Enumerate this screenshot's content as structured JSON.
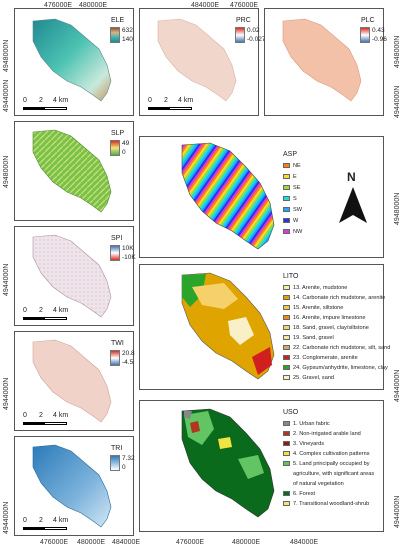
{
  "coords": {
    "easting": [
      "476000E",
      "480000E",
      "484000E"
    ],
    "northing": [
      "4948000N",
      "4944000N"
    ]
  },
  "scale": {
    "zero": "0",
    "mid": "2",
    "end": "4 km"
  },
  "panels": {
    "ele": {
      "title": "ELE",
      "max": "632",
      "min": "140",
      "ramp": [
        "#8b5a2b",
        "#d8b48a",
        "#3fb5a8",
        "#1f8a92"
      ]
    },
    "prc": {
      "title": "PRC",
      "max": "0.02",
      "min": "-0.027",
      "ramp": [
        "#d73027",
        "#ffffff",
        "#4575b4"
      ]
    },
    "plc": {
      "title": "PLC",
      "max": "0.43",
      "min": "-0.96",
      "ramp": [
        "#d73027",
        "#ffffff",
        "#4575b4"
      ]
    },
    "slp": {
      "title": "SLP",
      "max": "49",
      "min": "0",
      "ramp": [
        "#d7301f",
        "#f6e27f",
        "#4daf4a"
      ]
    },
    "spi": {
      "title": "SPI",
      "max": "10K",
      "min": "-10K",
      "ramp": [
        "#4575b4",
        "#ffffff",
        "#d73027"
      ]
    },
    "twi": {
      "title": "TWI",
      "max": "20.8",
      "min": "-4.5",
      "ramp": [
        "#d73027",
        "#ffffff",
        "#4575b4"
      ]
    },
    "tri": {
      "title": "TRI",
      "max": "7.32",
      "min": "0",
      "ramp": [
        "#ffffff",
        "#2b7bba"
      ]
    }
  },
  "asp": {
    "title": "ASP",
    "classes": [
      {
        "label": "NE",
        "color": "#ff7f0e"
      },
      {
        "label": "E",
        "color": "#ffd92f"
      },
      {
        "label": "SE",
        "color": "#9bd93c"
      },
      {
        "label": "S",
        "color": "#17e0e0"
      },
      {
        "label": "SW",
        "color": "#1fa6ff"
      },
      {
        "label": "W",
        "color": "#2a33e6"
      },
      {
        "label": "NW",
        "color": "#d93ad9"
      }
    ],
    "north": "N"
  },
  "lito": {
    "title": "LITO",
    "classes": [
      {
        "label": "13. Arenite, mudstone",
        "color": "#f7f29a"
      },
      {
        "label": "14. Carbonate rich mudstone, arenite",
        "color": "#e0a400"
      },
      {
        "label": "15. Arenite, siltstone",
        "color": "#f4c542"
      },
      {
        "label": "16. Arenite, impure limestone",
        "color": "#f08a1e"
      },
      {
        "label": "18. Sand, gravel, clay/siltstone",
        "color": "#f6d06a"
      },
      {
        "label": "19. Sand, gravel",
        "color": "#f7e59b"
      },
      {
        "label": "22. Carbonate rich mudstone, silt, sand",
        "color": "#cfae6a"
      },
      {
        "label": "23. Conglomerate, arenite",
        "color": "#d11f1f"
      },
      {
        "label": "24. Gypsum/anhydrite, limestone, clay",
        "color": "#2aa52a"
      },
      {
        "label": "25. Gravel, sand",
        "color": "#f9f0c8"
      }
    ]
  },
  "uso": {
    "title": "USO",
    "classes": [
      {
        "label": "1. Urban fabric",
        "color": "#888888"
      },
      {
        "label": "2. Non-irrigated arable land",
        "color": "#b0361f"
      },
      {
        "label": "3. Vineyards",
        "color": "#8b1a1a"
      },
      {
        "label": "4. Complex cultivation patterns",
        "color": "#f0e442"
      },
      {
        "label": "5. Land principally occupied by",
        "color": "#62c462"
      },
      {
        "label": "agriculture, with significant areas",
        "color": ""
      },
      {
        "label": "of natural vegetation",
        "color": ""
      },
      {
        "label": "6. Forest",
        "color": "#0b6b1c"
      },
      {
        "label": "7. Transitional woodland-shrub",
        "color": "#f6e27f"
      }
    ]
  }
}
